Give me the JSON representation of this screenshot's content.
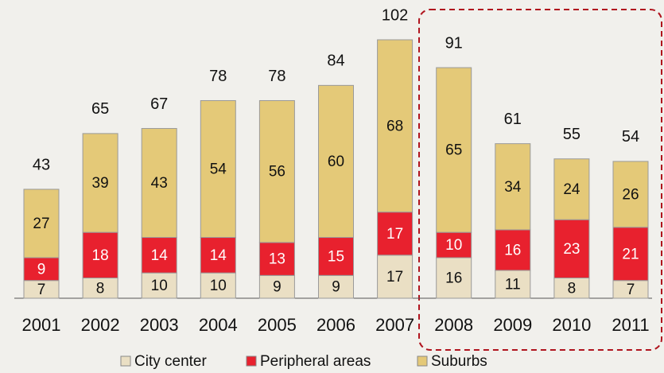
{
  "chart_data": {
    "type": "stacked-bar",
    "categories": [
      "2001",
      "2002",
      "2003",
      "2004",
      "2005",
      "2006",
      "2007",
      "2008",
      "2009",
      "2010",
      "2011"
    ],
    "series": [
      {
        "name": "City center",
        "color": "#eadfc4",
        "values": [
          7,
          8,
          10,
          10,
          9,
          9,
          17,
          16,
          11,
          8,
          7
        ]
      },
      {
        "name": "Peripheral areas",
        "color": "#e8212e",
        "values": [
          9,
          18,
          14,
          14,
          13,
          15,
          17,
          10,
          16,
          23,
          21
        ]
      },
      {
        "name": "Suburbs",
        "color": "#e4c978",
        "values": [
          27,
          39,
          43,
          54,
          56,
          60,
          68,
          65,
          34,
          24,
          26
        ]
      }
    ],
    "totals": [
      43,
      65,
      67,
      78,
      78,
      84,
      102,
      91,
      61,
      55,
      54
    ]
  }
}
